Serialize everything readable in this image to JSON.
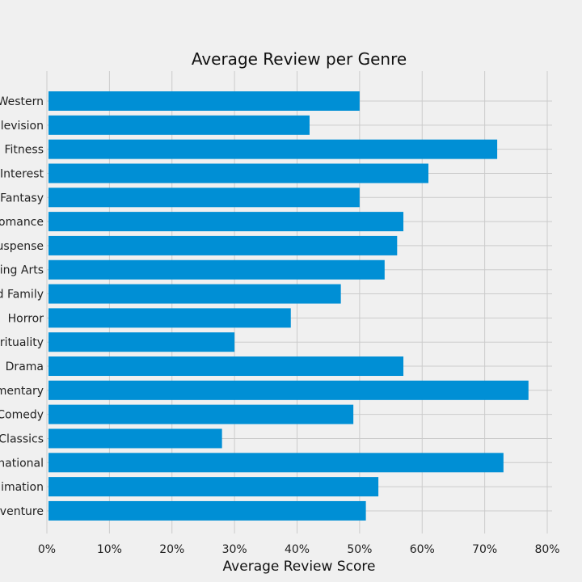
{
  "chart_data": {
    "type": "bar",
    "orientation": "horizontal",
    "title": "Average Review per Genre",
    "xlabel": "Average Review Score",
    "ylabel": "",
    "xlim": [
      0,
      80
    ],
    "grid": true,
    "x_tick_labels": [
      "0%",
      "10%",
      "20%",
      "30%",
      "40%",
      "50%",
      "60%",
      "70%",
      "80%"
    ],
    "categories": [
      "Western",
      "levision",
      "Fitness",
      "Interest",
      "Fantasy",
      "omance",
      "uspense",
      "ing Arts",
      "d Family",
      "Horror",
      "rituality",
      "Drama",
      "mentary",
      "Comedy",
      "Classics",
      "national",
      "imation",
      "venture"
    ],
    "values": [
      50,
      42,
      72,
      61,
      50,
      57,
      56,
      54,
      47,
      39,
      30,
      57,
      77,
      49,
      28,
      73,
      53,
      51
    ],
    "bar_color": "#008fd5",
    "background_color": "#f0f0f0",
    "grid_color": "#cbcbcb"
  }
}
